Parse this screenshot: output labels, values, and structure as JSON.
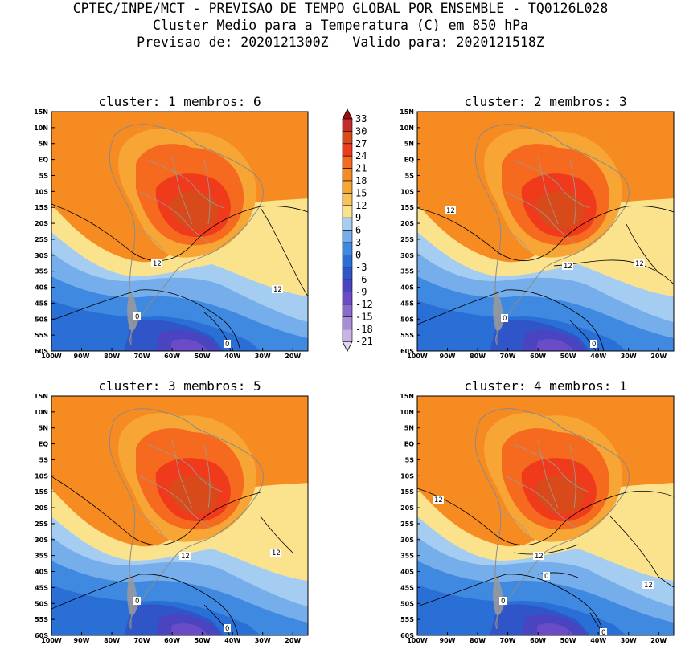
{
  "header": {
    "line1": "CPTEC/INPE/MCT - PREVISAO DE TEMPO GLOBAL POR ENSEMBLE - TQ0126L028",
    "line2": "Cluster Medio para a Temperatura (C) em 850 hPa",
    "line3": "Previsao de: 2020121300Z   Valido para: 2020121518Z"
  },
  "panels": [
    {
      "title": "cluster: 1  membros: 6",
      "contours": [
        "12",
        "12",
        "0",
        "0"
      ]
    },
    {
      "title": "cluster: 2  membros: 3",
      "contours": [
        "12",
        "12",
        "12",
        "0",
        "0"
      ]
    },
    {
      "title": "cluster: 3  membros: 5",
      "contours": [
        "12",
        "12",
        "0",
        "0"
      ]
    },
    {
      "title": "cluster: 4  membros: 1",
      "contours": [
        "12",
        "12",
        "12",
        "0",
        "0",
        "0"
      ]
    }
  ],
  "axes": {
    "lat_ticks": [
      "15N",
      "10N",
      "5N",
      "EQ",
      "5S",
      "10S",
      "15S",
      "20S",
      "25S",
      "30S",
      "35S",
      "40S",
      "45S",
      "50S",
      "55S",
      "60S"
    ],
    "lon_ticks": [
      "100W",
      "90W",
      "80W",
      "70W",
      "60W",
      "50W",
      "40W",
      "30W",
      "20W"
    ]
  },
  "colorbar": {
    "labels": [
      "33",
      "30",
      "27",
      "24",
      "21",
      "18",
      "15",
      "12",
      "9",
      "6",
      "3",
      "0",
      "-3",
      "-6",
      "-9",
      "-12",
      "-15",
      "-18",
      "-21"
    ],
    "colors": [
      "#a50a0a",
      "#c62a2a",
      "#d94a1a",
      "#ef3b1c",
      "#f56a1e",
      "#f68b22",
      "#f7a635",
      "#f7c257",
      "#fbe38e",
      "#a5cdf2",
      "#76aeec",
      "#3f8ae0",
      "#2a6fd5",
      "#2f55c8",
      "#4a44c0",
      "#6a4cc6",
      "#8b6ad0",
      "#a98cd9",
      "#c9b4e6",
      "#e3d7f1"
    ]
  },
  "chart_data": {
    "type": "heatmap",
    "title": "Cluster Medio para a Temperatura (C) em 850 hPa",
    "x_range": [
      "100W",
      "15W"
    ],
    "y_range": [
      "60S",
      "15N"
    ],
    "units": "C",
    "contour_levels": [
      0,
      12
    ],
    "color_levels": [
      -21,
      -18,
      -15,
      -12,
      -9,
      -6,
      -3,
      0,
      3,
      6,
      9,
      12,
      15,
      18,
      21,
      24,
      27,
      30,
      33
    ]
  }
}
